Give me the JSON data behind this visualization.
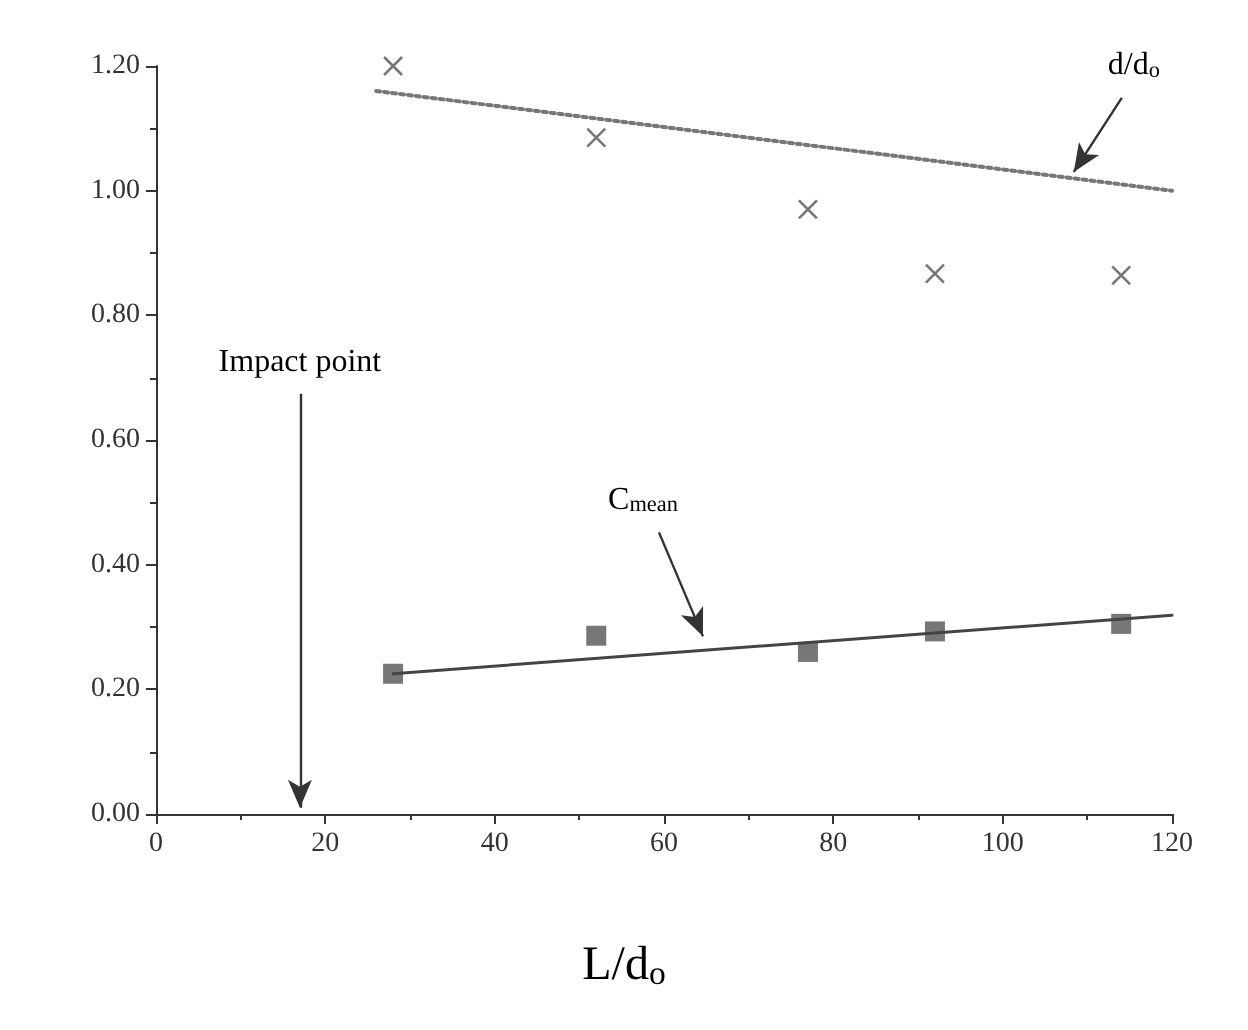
{
  "chart_data": {
    "type": "scatter",
    "xlabel": "L/d$_{o}$",
    "x": [
      28,
      52,
      77,
      92,
      114
    ],
    "series": [
      {
        "color": "#555555",
        "marker": "cross",
        "values": [
          1.2,
          1.085,
          0.97,
          0.867,
          0.864
        ]
      },
      {
        "type": "line",
        "color": "#777777",
        "marker": "none",
        "line_style": "dotted",
        "x": [
          26,
          120
        ],
        "values": [
          1.16,
          1.0
        ]
      },
      {
        "color": "#555555",
        "marker": "square",
        "values": [
          0.225,
          0.286,
          0.26,
          0.293,
          0.305
        ]
      },
      {
        "type": "line",
        "color": "#444444",
        "marker": "none",
        "line_style": "solid",
        "x": [
          28,
          120
        ],
        "values": [
          0.225,
          0.319
        ]
      }
    ],
    "xlim": [
      0,
      120
    ],
    "xticks": [
      0,
      20,
      40,
      60,
      80,
      100,
      120
    ],
    "ylim": [
      0,
      1.2
    ],
    "yticks": [
      {
        "value": 0,
        "label": "0.00"
      },
      {
        "value": 0.2,
        "label": "0.20"
      },
      {
        "value": 0.4,
        "label": "0.40"
      },
      {
        "value": 0.6,
        "label": "0.60"
      },
      {
        "value": 0.8,
        "label": "0.80"
      },
      {
        "value": 1.0,
        "label": "1.00"
      },
      {
        "value": 1.2,
        "label": "1.20"
      }
    ],
    "grid": false,
    "annotations": [
      "Impact point",
      "C$_{mean}$",
      {
        "text": "d/d$_{o}$",
        "x": 108.4,
        "y": 1.03
      }
    ]
  }
}
